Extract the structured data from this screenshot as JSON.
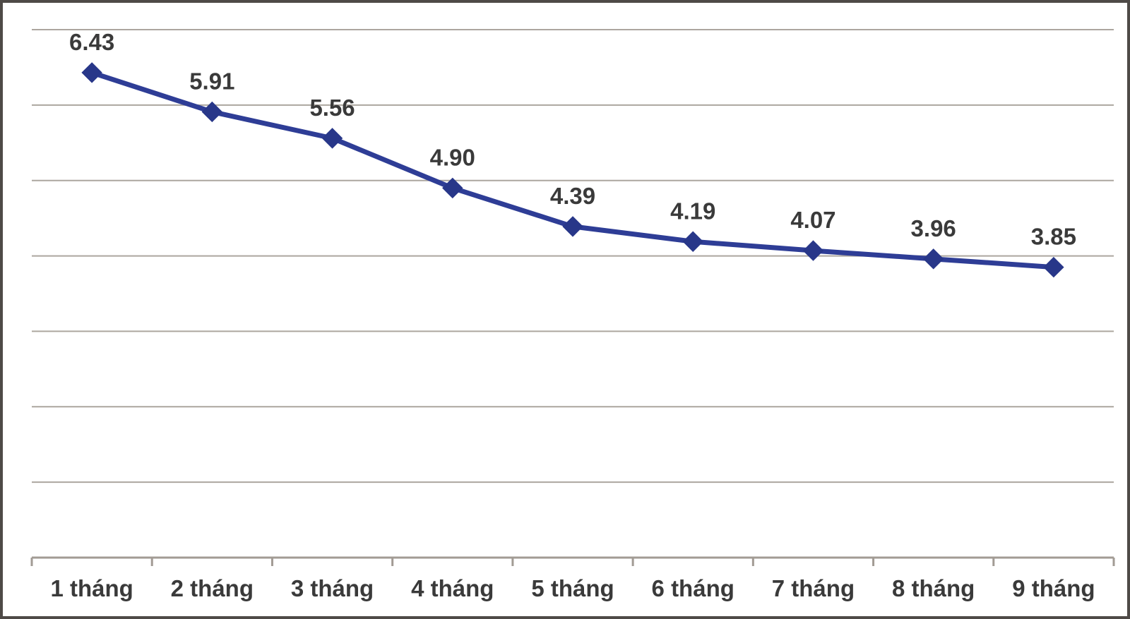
{
  "chart_data": {
    "type": "line",
    "title": "",
    "categories": [
      "1 tháng",
      "2 tháng",
      "3 tháng",
      "4 tháng",
      "5 tháng",
      "6 tháng",
      "7 tháng",
      "8 tháng",
      "9 tháng"
    ],
    "series": [
      {
        "name": "series-1",
        "values": [
          6.43,
          5.91,
          5.56,
          4.9,
          4.39,
          4.19,
          4.07,
          3.96,
          3.85
        ],
        "labels": [
          "6.43",
          "5.91",
          "5.56",
          "4.90",
          "4.39",
          "4.19",
          "4.07",
          "3.96",
          "3.85"
        ]
      }
    ],
    "xlabel": "",
    "ylabel": "",
    "ylim": [
      0,
      7
    ],
    "grid_step": 1,
    "grid_on": true,
    "y_tick_labels_visible": false,
    "legend_position": "none",
    "marker_shape": "diamond",
    "colors": {
      "line": "#2E3D96",
      "marker": "#283789",
      "data_label": "#3A3A3A",
      "axis_label": "#3A3A3A",
      "gridline": "#ACA69F",
      "axis_line": "#A29B94",
      "chart_border": "#4E4A47",
      "background": "#FFFFFF"
    }
  }
}
